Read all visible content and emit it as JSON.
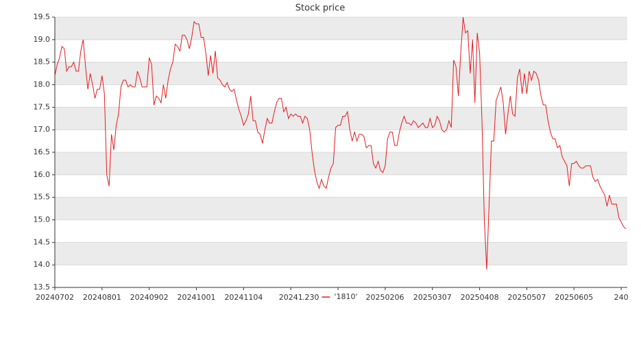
{
  "chart_data": {
    "type": "line",
    "title": "Stock price",
    "x": [
      "20240702",
      null,
      null,
      null,
      null,
      null,
      null,
      null,
      null,
      null,
      null,
      null,
      null,
      null,
      null,
      null,
      null,
      null,
      null,
      null,
      "20240801",
      null,
      null,
      null,
      null,
      null,
      null,
      null,
      null,
      null,
      null,
      null,
      null,
      null,
      null,
      null,
      null,
      null,
      null,
      null,
      "20240902",
      null,
      null,
      null,
      null,
      null,
      null,
      null,
      null,
      null,
      null,
      null,
      null,
      null,
      null,
      null,
      null,
      null,
      null,
      null,
      "20241001",
      null,
      null,
      null,
      null,
      null,
      null,
      null,
      null,
      null,
      null,
      null,
      null,
      null,
      null,
      null,
      null,
      null,
      null,
      null,
      "20241104",
      null,
      null,
      null,
      null,
      null,
      null,
      null,
      null,
      null,
      null,
      null,
      null,
      null,
      null,
      null,
      null,
      null,
      null,
      null,
      "20241",
      null,
      null,
      null,
      null,
      null,
      null,
      null,
      null,
      null,
      null,
      null,
      null,
      null,
      null,
      null,
      null,
      null,
      null,
      null,
      ".230",
      null,
      null,
      null,
      null,
      null,
      null,
      null,
      null,
      null,
      null,
      null,
      null,
      null,
      null,
      null,
      null,
      null,
      null,
      null,
      "20250206",
      null,
      null,
      null,
      null,
      null,
      null,
      null,
      null,
      null,
      null,
      null,
      null,
      null,
      null,
      null,
      null,
      null,
      null,
      null,
      "20250307",
      null,
      null,
      null,
      null,
      null,
      null,
      null,
      null,
      null,
      null,
      null,
      null,
      null,
      null,
      null,
      null,
      null,
      null,
      null,
      "20250408",
      null,
      null,
      null,
      null,
      null,
      null,
      null,
      null,
      null,
      null,
      null,
      null,
      null,
      null,
      null,
      null,
      null,
      null,
      null,
      "20250507",
      null,
      null,
      null,
      null,
      null,
      null,
      null,
      null,
      null,
      null,
      null,
      null,
      null,
      null,
      null,
      null,
      null,
      null,
      null,
      "20250605",
      null,
      null,
      null,
      null,
      null,
      null,
      null,
      null,
      null,
      null,
      null,
      null,
      null,
      null,
      null,
      null,
      null,
      null,
      null,
      "240",
      null,
      null
    ],
    "series": [
      {
        "name": "'1810'",
        "color": "#e8191b",
        "values": [
          18.2,
          18.45,
          18.6,
          18.85,
          18.8,
          18.3,
          18.4,
          18.4,
          18.5,
          18.3,
          18.3,
          18.75,
          19.0,
          18.4,
          17.9,
          18.25,
          18.0,
          17.7,
          17.9,
          17.9,
          18.2,
          17.8,
          16.0,
          15.75,
          16.9,
          16.55,
          17.1,
          17.35,
          17.95,
          18.1,
          18.1,
          17.95,
          18.0,
          17.95,
          17.95,
          18.3,
          18.15,
          17.95,
          17.95,
          17.95,
          18.6,
          18.45,
          17.55,
          17.75,
          17.7,
          17.6,
          18.0,
          17.7,
          18.1,
          18.35,
          18.5,
          18.9,
          18.85,
          18.75,
          19.1,
          19.1,
          19.0,
          18.8,
          19.05,
          19.4,
          19.35,
          19.35,
          19.05,
          19.05,
          18.7,
          18.2,
          18.65,
          18.25,
          18.75,
          18.15,
          18.1,
          18.0,
          17.95,
          18.05,
          17.9,
          17.85,
          17.9,
          17.65,
          17.45,
          17.3,
          17.1,
          17.2,
          17.35,
          17.75,
          17.2,
          17.2,
          16.95,
          16.9,
          16.7,
          17.0,
          17.25,
          17.15,
          17.15,
          17.4,
          17.6,
          17.7,
          17.7,
          17.4,
          17.5,
          17.25,
          17.35,
          17.3,
          17.35,
          17.3,
          17.3,
          17.15,
          17.3,
          17.25,
          17.0,
          16.5,
          16.1,
          15.85,
          15.7,
          15.9,
          15.75,
          15.7,
          15.95,
          16.15,
          16.25,
          17.05,
          17.1,
          17.1,
          17.3,
          17.3,
          17.4,
          17.0,
          16.75,
          16.95,
          16.75,
          16.9,
          16.9,
          16.85,
          16.6,
          16.65,
          16.65,
          16.25,
          16.15,
          16.3,
          16.1,
          16.05,
          16.2,
          16.8,
          16.95,
          16.95,
          16.65,
          16.65,
          16.95,
          17.15,
          17.3,
          17.15,
          17.15,
          17.1,
          17.2,
          17.15,
          17.05,
          17.1,
          17.15,
          17.05,
          17.05,
          17.25,
          17.05,
          17.1,
          17.3,
          17.2,
          17.0,
          16.95,
          17.0,
          17.2,
          17.05,
          18.55,
          18.4,
          17.75,
          18.7,
          19.5,
          19.15,
          19.2,
          18.25,
          19.0,
          17.6,
          19.15,
          18.7,
          17.2,
          15.0,
          13.9,
          15.3,
          16.75,
          16.75,
          17.65,
          17.8,
          17.95,
          17.6,
          16.9,
          17.35,
          17.75,
          17.35,
          17.3,
          18.15,
          18.35,
          17.8,
          18.25,
          17.8,
          18.3,
          18.1,
          18.3,
          18.25,
          18.1,
          17.75,
          17.55,
          17.55,
          17.2,
          16.95,
          16.8,
          16.8,
          16.6,
          16.65,
          16.4,
          16.3,
          16.2,
          15.75,
          16.25,
          16.25,
          16.3,
          16.2,
          16.15,
          16.15,
          16.2,
          16.2,
          16.2,
          15.95,
          15.85,
          15.9,
          15.75,
          15.65,
          15.55,
          15.3,
          15.55,
          15.35,
          15.35,
          15.35,
          15.05,
          14.95,
          14.85,
          14.8
        ]
      }
    ],
    "ylim": [
      13.5,
      19.5
    ],
    "yticks": [
      13.5,
      {
        "value": 14,
        "label": "14.0"
      },
      14.5,
      {
        "value": 15,
        "label": "15.0"
      },
      15.5,
      {
        "value": 16,
        "label": "16.0"
      },
      16.5,
      {
        "value": 17,
        "label": "17.0"
      },
      17.5,
      {
        "value": 18,
        "label": "18.0"
      },
      18.5,
      {
        "value": 19,
        "label": "19.0"
      },
      19.5
    ],
    "grid": true,
    "legend": "bottom"
  }
}
